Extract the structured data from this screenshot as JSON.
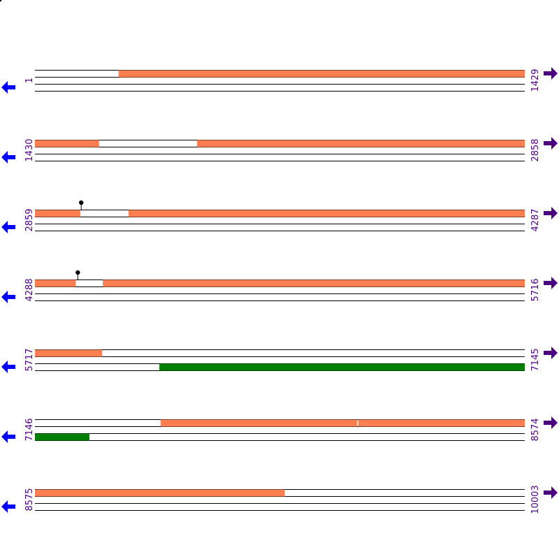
{
  "colors": {
    "forward_orf": "#ff7f50",
    "reverse_orf": "#008000",
    "left_arrow": "#0000ff",
    "right_arrow": "#4b0082",
    "coordinate_text": "#4b0082",
    "line": "#000000"
  },
  "icons": {
    "left": "arrow-left-icon",
    "right": "arrow-right-icon",
    "marker": "lollipop-marker-icon"
  },
  "rows": [
    {
      "start_label": "1",
      "end_label": "1429",
      "start": 1,
      "end": 1429,
      "segments": [
        {
          "track": 0,
          "from": 245,
          "to": 1429,
          "color": "forward_orf"
        }
      ],
      "markers": []
    },
    {
      "start_label": "1430",
      "end_label": "2858",
      "start": 1430,
      "end": 2858,
      "segments": [
        {
          "track": 0,
          "from": 1430,
          "to": 1616,
          "color": "forward_orf"
        },
        {
          "track": 0,
          "from": 1903,
          "to": 2858,
          "color": "forward_orf"
        }
      ],
      "markers": []
    },
    {
      "start_label": "2859",
      "end_label": "4287",
      "start": 2859,
      "end": 4287,
      "segments": [
        {
          "track": 0,
          "from": 2859,
          "to": 2990,
          "color": "forward_orf"
        },
        {
          "track": 0,
          "from": 3132,
          "to": 4287,
          "color": "forward_orf"
        }
      ],
      "markers": [
        {
          "position": 2994
        }
      ]
    },
    {
      "start_label": "4288",
      "end_label": "5716",
      "start": 4288,
      "end": 5716,
      "segments": [
        {
          "track": 0,
          "from": 4288,
          "to": 4406,
          "color": "forward_orf"
        },
        {
          "track": 0,
          "from": 4486,
          "to": 5716,
          "color": "forward_orf"
        }
      ],
      "markers": [
        {
          "position": 4413
        }
      ]
    },
    {
      "start_label": "5717",
      "end_label": "7145",
      "start": 5717,
      "end": 7145,
      "segments": [
        {
          "track": 0,
          "from": 5717,
          "to": 5912,
          "color": "forward_orf"
        },
        {
          "track": 2,
          "from": 6080,
          "to": 7145,
          "color": "reverse_orf"
        }
      ],
      "markers": []
    },
    {
      "start_label": "7146",
      "end_label": "8574",
      "start": 7146,
      "end": 8574,
      "segments": [
        {
          "track": 0,
          "from": 7513,
          "to": 8085,
          "color": "forward_orf"
        },
        {
          "track": 0,
          "from": 8089,
          "to": 8574,
          "color": "forward_orf"
        },
        {
          "track": 2,
          "from": 7146,
          "to": 7304,
          "color": "reverse_orf"
        }
      ],
      "markers": []
    },
    {
      "start_label": "8575",
      "end_label": "10003",
      "start": 8575,
      "end": 10003,
      "segments": [
        {
          "track": 0,
          "from": 8575,
          "to": 9303,
          "color": "forward_orf"
        }
      ],
      "markers": []
    }
  ]
}
